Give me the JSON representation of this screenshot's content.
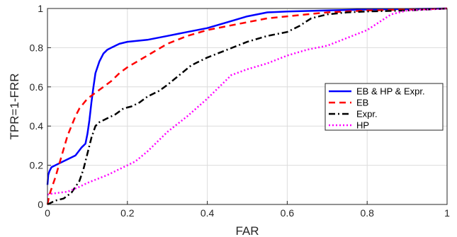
{
  "chart_data": {
    "type": "line",
    "xlabel": "FAR",
    "ylabel": "TPR=1-FRR",
    "xlim": [
      0,
      1
    ],
    "ylim": [
      0,
      1
    ],
    "xticks": [
      0,
      0.2,
      0.4,
      0.6,
      0.8,
      1
    ],
    "yticks": [
      0,
      0.2,
      0.4,
      0.6,
      0.8,
      1
    ],
    "xtick_labels": [
      "0",
      "0.2",
      "0.4",
      "0.6",
      "0.8",
      "1"
    ],
    "ytick_labels": [
      "0",
      "0.2",
      "0.4",
      "0.6",
      "0.8",
      "1"
    ],
    "grid": true,
    "legend_position": "center-right",
    "series": [
      {
        "name": "EB & HP & Expr.",
        "color": "#0000ff",
        "dash": "solid",
        "points": [
          [
            0,
            0.1
          ],
          [
            0.002,
            0.15
          ],
          [
            0.005,
            0.17
          ],
          [
            0.01,
            0.19
          ],
          [
            0.03,
            0.21
          ],
          [
            0.05,
            0.23
          ],
          [
            0.07,
            0.25
          ],
          [
            0.085,
            0.29
          ],
          [
            0.095,
            0.31
          ],
          [
            0.1,
            0.36
          ],
          [
            0.105,
            0.43
          ],
          [
            0.11,
            0.52
          ],
          [
            0.115,
            0.6
          ],
          [
            0.12,
            0.67
          ],
          [
            0.13,
            0.73
          ],
          [
            0.14,
            0.77
          ],
          [
            0.15,
            0.79
          ],
          [
            0.16,
            0.8
          ],
          [
            0.18,
            0.82
          ],
          [
            0.2,
            0.83
          ],
          [
            0.25,
            0.84
          ],
          [
            0.3,
            0.86
          ],
          [
            0.35,
            0.88
          ],
          [
            0.4,
            0.9
          ],
          [
            0.45,
            0.93
          ],
          [
            0.5,
            0.96
          ],
          [
            0.55,
            0.98
          ],
          [
            0.6,
            0.985
          ],
          [
            0.7,
            0.99
          ],
          [
            0.8,
            0.995
          ],
          [
            0.9,
            0.997
          ],
          [
            1.0,
            1.0
          ]
        ]
      },
      {
        "name": "EB",
        "color": "#ff0000",
        "dash": "dashed",
        "points": [
          [
            0,
            0.0
          ],
          [
            0.005,
            0.05
          ],
          [
            0.01,
            0.08
          ],
          [
            0.02,
            0.14
          ],
          [
            0.03,
            0.21
          ],
          [
            0.04,
            0.28
          ],
          [
            0.05,
            0.35
          ],
          [
            0.06,
            0.4
          ],
          [
            0.07,
            0.45
          ],
          [
            0.08,
            0.49
          ],
          [
            0.1,
            0.54
          ],
          [
            0.12,
            0.57
          ],
          [
            0.14,
            0.6
          ],
          [
            0.16,
            0.63
          ],
          [
            0.18,
            0.67
          ],
          [
            0.2,
            0.7
          ],
          [
            0.25,
            0.76
          ],
          [
            0.3,
            0.82
          ],
          [
            0.35,
            0.86
          ],
          [
            0.4,
            0.89
          ],
          [
            0.45,
            0.91
          ],
          [
            0.5,
            0.93
          ],
          [
            0.55,
            0.95
          ],
          [
            0.6,
            0.96
          ],
          [
            0.65,
            0.97
          ],
          [
            0.7,
            0.98
          ],
          [
            0.8,
            0.99
          ],
          [
            0.9,
            0.995
          ],
          [
            1.0,
            1.0
          ]
        ]
      },
      {
        "name": "Expr.",
        "color": "#000000",
        "dash": "dashdot",
        "points": [
          [
            0,
            0.0
          ],
          [
            0.01,
            0.01
          ],
          [
            0.02,
            0.02
          ],
          [
            0.04,
            0.03
          ],
          [
            0.06,
            0.06
          ],
          [
            0.08,
            0.12
          ],
          [
            0.09,
            0.18
          ],
          [
            0.1,
            0.26
          ],
          [
            0.11,
            0.34
          ],
          [
            0.12,
            0.4
          ],
          [
            0.13,
            0.42
          ],
          [
            0.15,
            0.44
          ],
          [
            0.17,
            0.46
          ],
          [
            0.19,
            0.49
          ],
          [
            0.21,
            0.5
          ],
          [
            0.23,
            0.52
          ],
          [
            0.25,
            0.55
          ],
          [
            0.28,
            0.58
          ],
          [
            0.3,
            0.61
          ],
          [
            0.33,
            0.66
          ],
          [
            0.36,
            0.71
          ],
          [
            0.4,
            0.75
          ],
          [
            0.45,
            0.79
          ],
          [
            0.5,
            0.83
          ],
          [
            0.55,
            0.86
          ],
          [
            0.6,
            0.88
          ],
          [
            0.63,
            0.91
          ],
          [
            0.66,
            0.95
          ],
          [
            0.7,
            0.97
          ],
          [
            0.75,
            0.98
          ],
          [
            0.8,
            0.985
          ],
          [
            0.9,
            0.99
          ],
          [
            1.0,
            1.0
          ]
        ]
      },
      {
        "name": "HP",
        "color": "#ff00ff",
        "dash": "dotted",
        "points": [
          [
            0,
            0.05
          ],
          [
            0.01,
            0.055
          ],
          [
            0.05,
            0.065
          ],
          [
            0.08,
            0.09
          ],
          [
            0.1,
            0.11
          ],
          [
            0.15,
            0.15
          ],
          [
            0.2,
            0.2
          ],
          [
            0.22,
            0.22
          ],
          [
            0.25,
            0.27
          ],
          [
            0.28,
            0.33
          ],
          [
            0.3,
            0.37
          ],
          [
            0.35,
            0.45
          ],
          [
            0.4,
            0.54
          ],
          [
            0.43,
            0.6
          ],
          [
            0.46,
            0.66
          ],
          [
            0.5,
            0.69
          ],
          [
            0.55,
            0.72
          ],
          [
            0.6,
            0.76
          ],
          [
            0.65,
            0.79
          ],
          [
            0.7,
            0.81
          ],
          [
            0.75,
            0.85
          ],
          [
            0.8,
            0.89
          ],
          [
            0.83,
            0.93
          ],
          [
            0.86,
            0.97
          ],
          [
            0.9,
            0.99
          ],
          [
            0.95,
            0.995
          ],
          [
            1.0,
            1.0
          ]
        ]
      }
    ]
  }
}
